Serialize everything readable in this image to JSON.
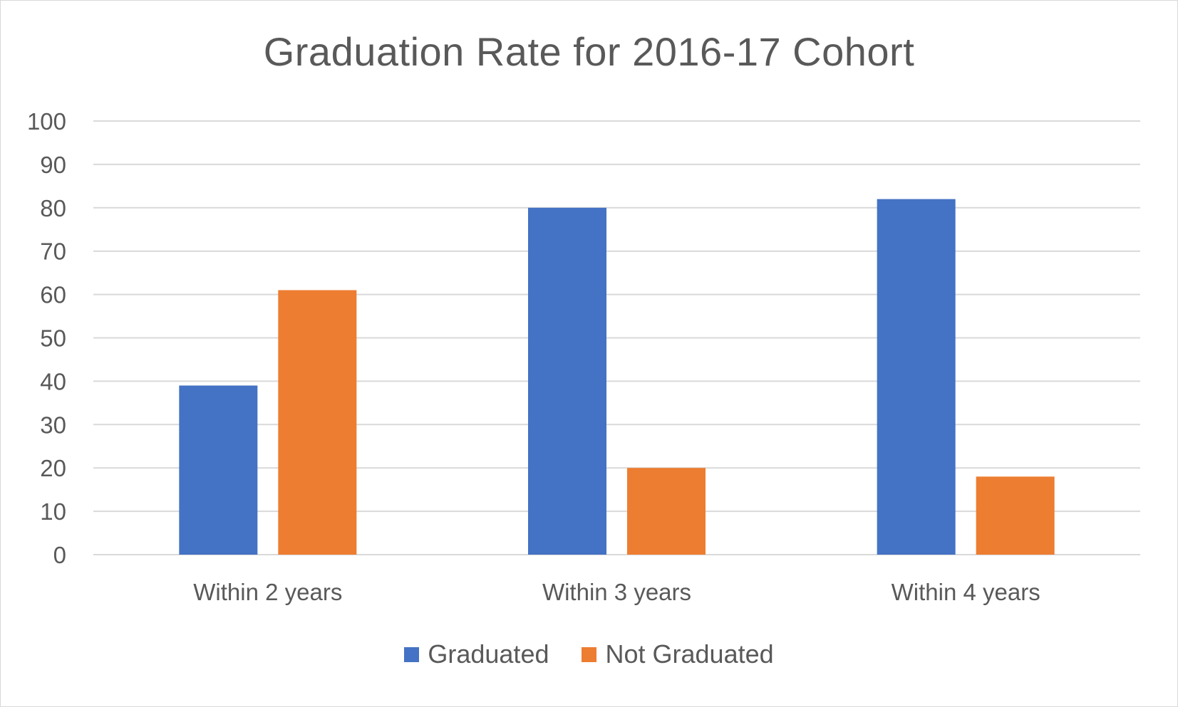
{
  "chart_data": {
    "type": "bar",
    "title": "Graduation Rate for 2016-17 Cohort",
    "xlabel": "",
    "ylabel": "",
    "categories": [
      "Within 2 years",
      "Within 3 years",
      "Within 4 years"
    ],
    "series": [
      {
        "name": "Graduated",
        "values": [
          39,
          80,
          82
        ],
        "color": "#4472c4"
      },
      {
        "name": "Not Graduated",
        "values": [
          61,
          20,
          18
        ],
        "color": "#ed7d31"
      }
    ],
    "ylim": [
      0,
      100
    ],
    "yticks": [
      0,
      10,
      20,
      30,
      40,
      50,
      60,
      70,
      80,
      90,
      100
    ],
    "grid": true,
    "legend_position": "bottom",
    "colors": {
      "gridline": "#d9d9d9",
      "axis_text": "#595959",
      "title_text": "#595959"
    }
  }
}
